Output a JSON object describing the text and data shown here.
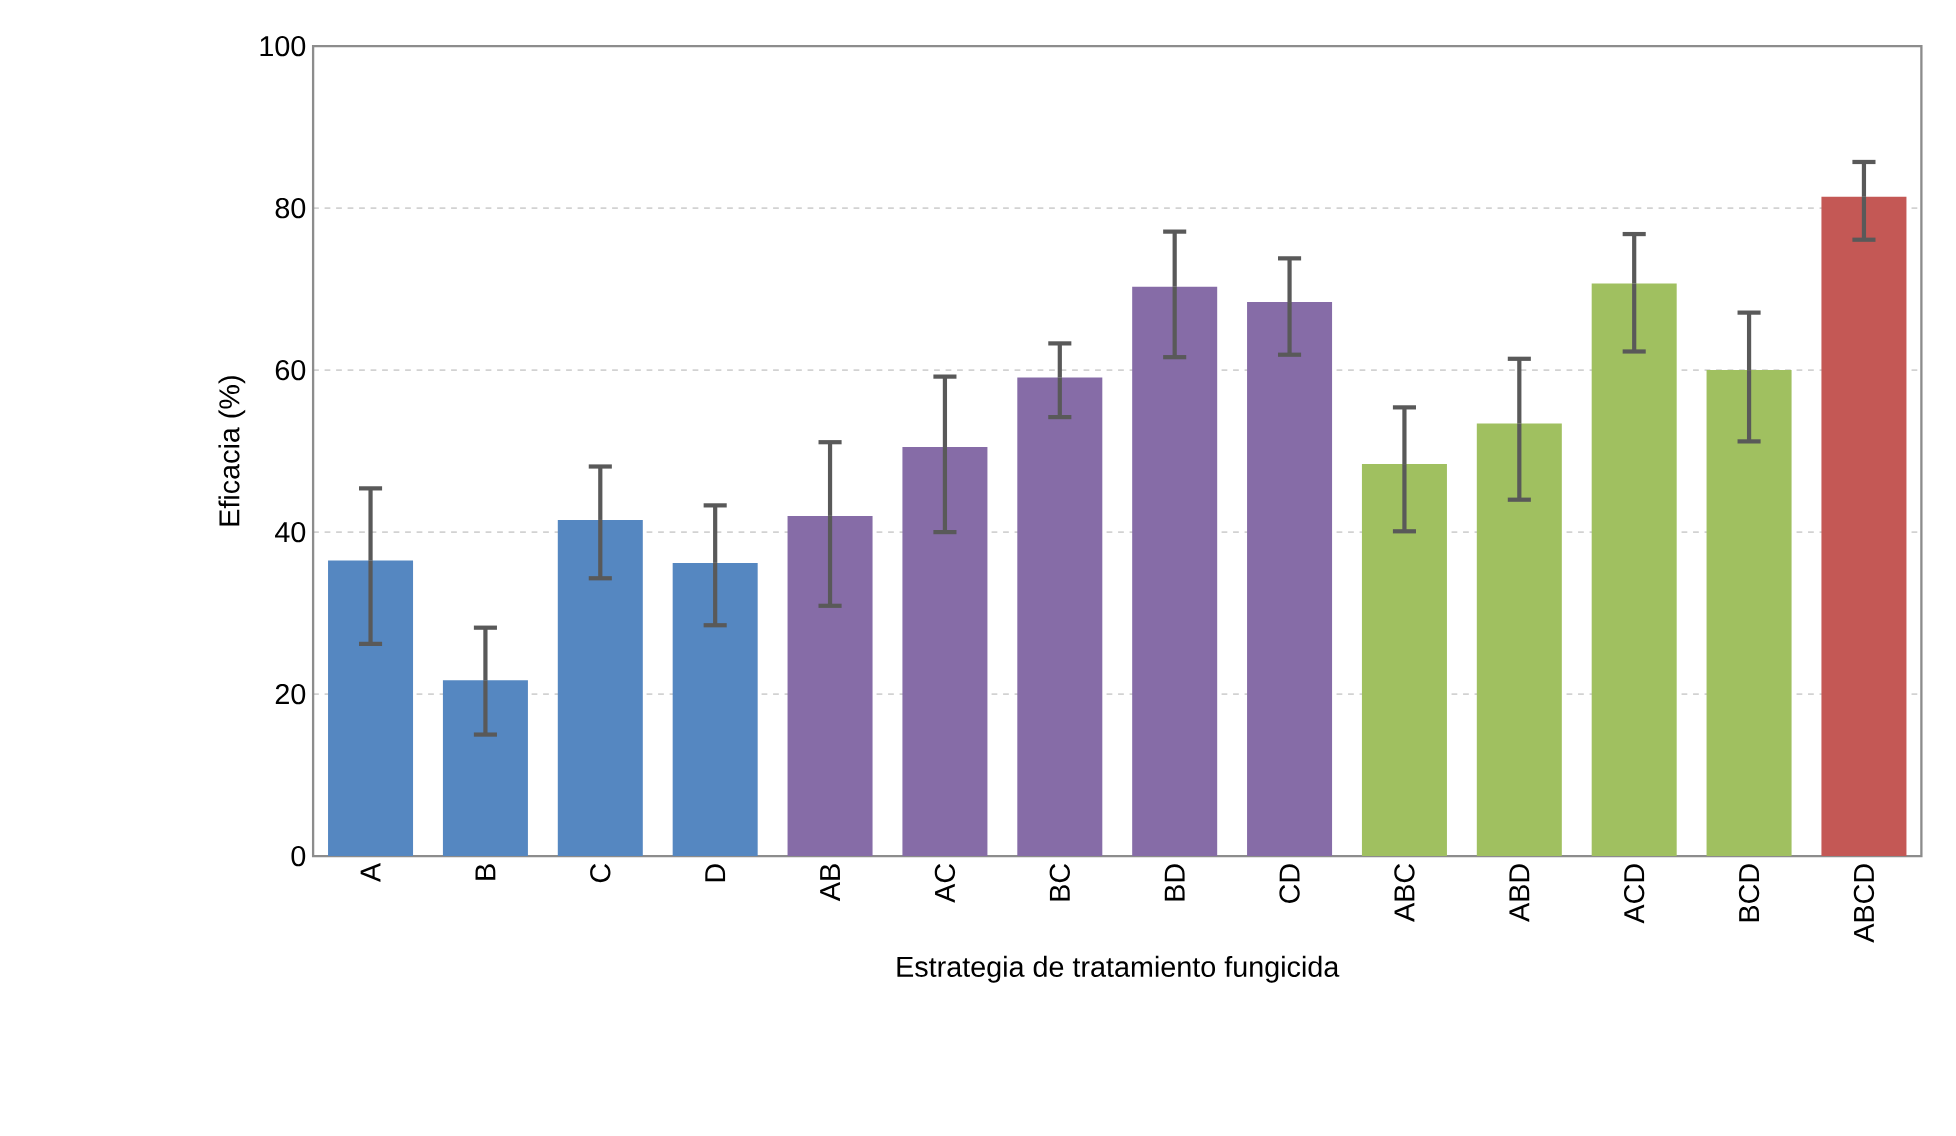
{
  "chart_data": {
    "type": "bar",
    "xlabel": "Estrategia de tratamiento fungicida",
    "ylabel": "Eficacia (%)",
    "categories": [
      "A",
      "B",
      "C",
      "D",
      "AB",
      "AC",
      "BC",
      "BD",
      "CD",
      "ABC",
      "ABD",
      "ACD",
      "BCD",
      "ABCD"
    ],
    "values": [
      36.5,
      21.7,
      41.5,
      36.2,
      42.0,
      50.5,
      59.1,
      70.3,
      68.4,
      48.4,
      53.4,
      70.7,
      60.0,
      81.4
    ],
    "colors": [
      "#5587c1",
      "#5587c1",
      "#5587c1",
      "#5587c1",
      "#866ca7",
      "#866ca7",
      "#866ca7",
      "#866ca7",
      "#866ca7",
      "#a0c060",
      "#a0c060",
      "#a0c060",
      "#a0c060",
      "#c45855"
    ],
    "errors": [
      [
        26.2,
        45.4
      ],
      [
        15.0,
        28.2
      ],
      [
        34.3,
        48.1
      ],
      [
        28.5,
        43.3
      ],
      [
        30.9,
        51.1
      ],
      [
        40.0,
        59.2
      ],
      [
        54.2,
        63.3
      ],
      [
        61.6,
        77.1
      ],
      [
        61.9,
        73.8
      ],
      [
        40.1,
        55.4
      ],
      [
        44.0,
        61.4
      ],
      [
        62.3,
        76.8
      ],
      [
        51.2,
        67.1
      ],
      [
        76.1,
        85.7
      ]
    ],
    "ylim": [
      0,
      100
    ],
    "yticks": [
      0,
      20,
      40,
      60,
      80,
      100
    ],
    "grid": "y"
  }
}
